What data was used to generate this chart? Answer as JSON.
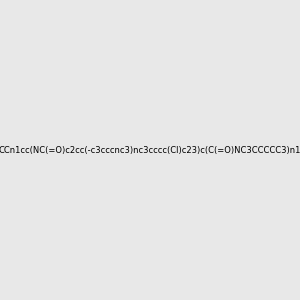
{
  "smiles": "CCn1cc(NC(=O)c2cc(-c3cccnc3)nc3cccc(Cl)c23)c(C(=O)NC3CCCCC3)n1",
  "title": "",
  "bg_color": "#e8e8e8",
  "fig_width": 3.0,
  "fig_height": 3.0,
  "dpi": 100,
  "atom_color_map": {
    "N": "#0000ff",
    "O": "#ff0000",
    "Cl": "#00aa00"
  },
  "bond_color": "#000000",
  "img_size": [
    300,
    300
  ]
}
